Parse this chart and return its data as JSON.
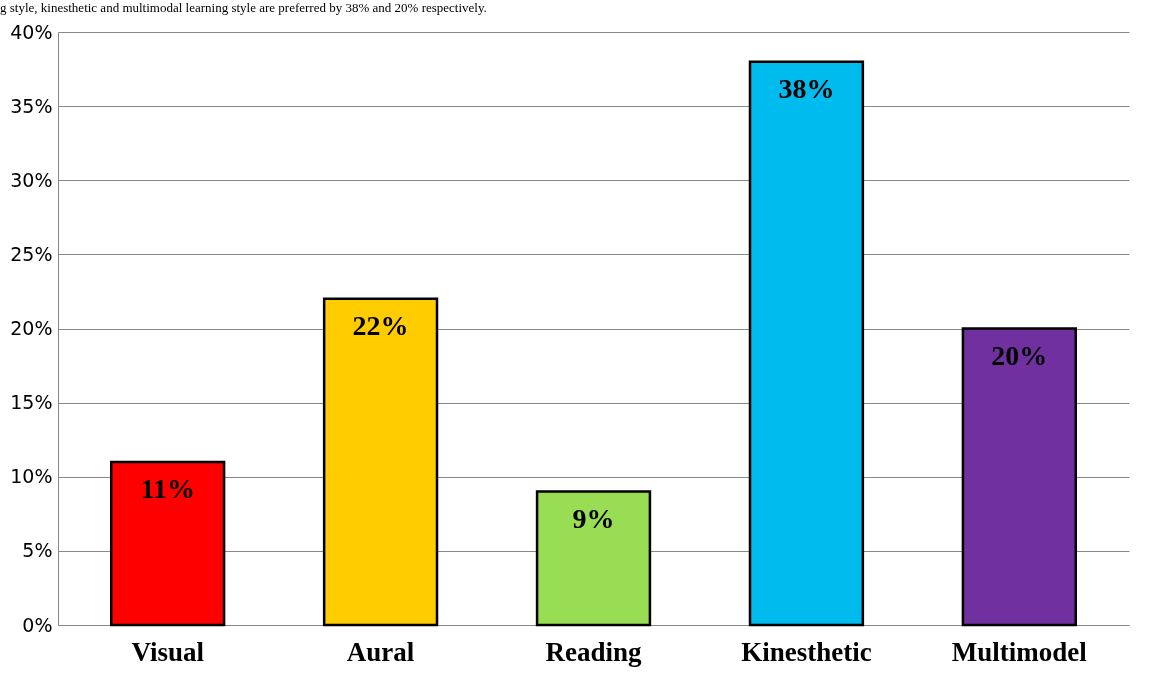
{
  "chart_data": {
    "type": "bar",
    "annotations": [
      "g style, kinesthetic and multimodal learning style are preferred by 38% and 20% respectively."
    ],
    "categories": [
      "Visual",
      "Aural",
      "Reading",
      "Kinesthetic",
      "Multimodel"
    ],
    "values": [
      11,
      22,
      9,
      38,
      20
    ],
    "colors": [
      "#ff0000",
      "#ffcc00",
      "#99dd55",
      "#00bbee",
      "#7030a0"
    ],
    "ylim": [
      0,
      40
    ],
    "yticks": [
      {
        "value": 0,
        "label": "0%"
      },
      {
        "value": 5,
        "label": "5%"
      },
      {
        "value": 10,
        "label": "10%"
      },
      {
        "value": 15,
        "label": "15%"
      },
      {
        "value": 20,
        "label": "20%"
      },
      {
        "value": 25,
        "label": "25%"
      },
      {
        "value": 30,
        "label": "30%"
      },
      {
        "value": 35,
        "label": "35%"
      },
      {
        "value": 40,
        "label": "40%"
      }
    ],
    "value_labels": [
      "11%",
      "22%",
      "9%",
      "38%",
      "20%"
    ],
    "grid": "y"
  }
}
